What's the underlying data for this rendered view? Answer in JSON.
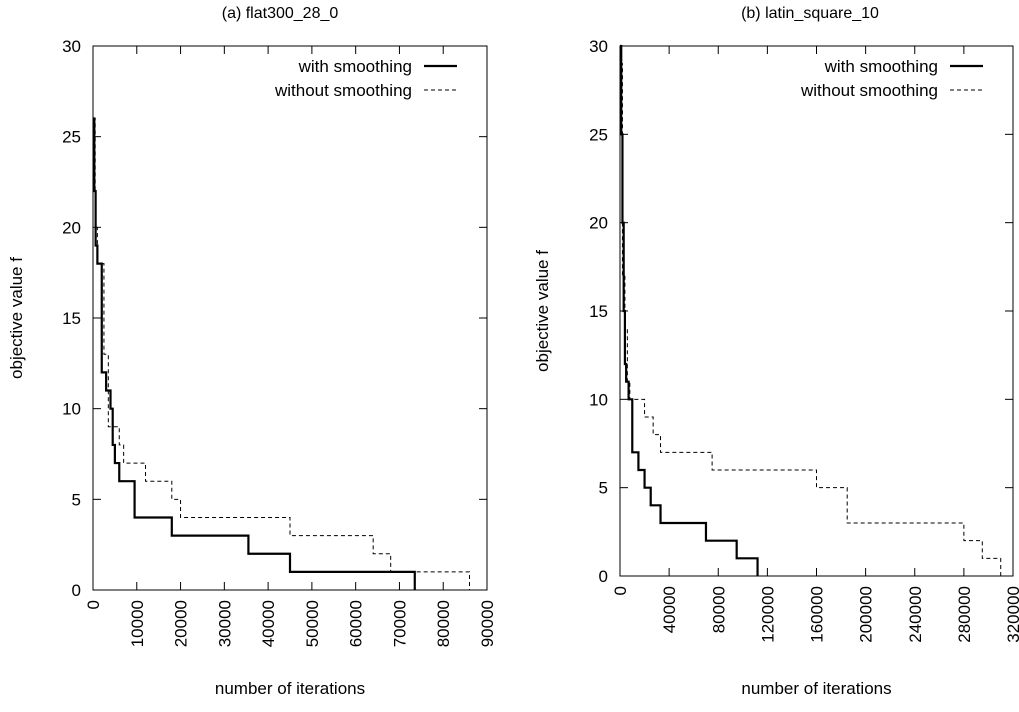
{
  "chart_data": [
    {
      "type": "line",
      "title": "(a) flat300_28_0",
      "xlabel": "number of iterations",
      "ylabel": "objective value f",
      "xlim": [
        0,
        90000
      ],
      "ylim": [
        0,
        30
      ],
      "xticks": [
        0,
        10000,
        20000,
        30000,
        40000,
        50000,
        60000,
        70000,
        80000,
        90000
      ],
      "yticks": [
        0,
        5,
        10,
        15,
        20,
        25,
        30
      ],
      "legend_position": "top-right",
      "grid": false,
      "series": [
        {
          "name": "with smoothing",
          "style": "solid",
          "step": true,
          "x": [
            0,
            300,
            600,
            1000,
            2000,
            3000,
            4000,
            4500,
            5000,
            6000,
            9000,
            9500,
            18000,
            32000,
            35500,
            45000,
            73500
          ],
          "y": [
            26,
            22,
            19,
            18,
            12,
            11,
            10,
            8,
            7,
            6,
            6,
            4,
            3,
            3,
            2,
            1,
            0
          ]
        },
        {
          "name": "without smoothing",
          "style": "dashed",
          "step": true,
          "x": [
            0,
            500,
            1000,
            2500,
            3500,
            5000,
            6000,
            7000,
            10000,
            12000,
            16000,
            18000,
            20000,
            35000,
            45000,
            64000,
            68000,
            70000,
            86000
          ],
          "y": [
            26,
            20,
            18,
            13,
            9,
            9,
            8,
            7,
            7,
            6,
            6,
            5,
            4,
            4,
            3,
            2,
            1,
            1,
            0
          ]
        }
      ]
    },
    {
      "type": "line",
      "title": "(b) latin_square_10",
      "xlabel": "number of iterations",
      "ylabel": "objective value f",
      "xlim": [
        0,
        320000
      ],
      "ylim": [
        0,
        30
      ],
      "xticks": [
        0,
        40000,
        80000,
        120000,
        160000,
        200000,
        240000,
        280000,
        320000
      ],
      "yticks": [
        0,
        5,
        10,
        15,
        20,
        25,
        30
      ],
      "legend_position": "top-right",
      "grid": false,
      "series": [
        {
          "name": "with smoothing",
          "style": "solid",
          "step": true,
          "x": [
            0,
            1000,
            2000,
            3000,
            4000,
            5000,
            7000,
            10000,
            15000,
            20000,
            25000,
            33000,
            50000,
            70000,
            90000,
            95000,
            110000,
            112000
          ],
          "y": [
            30,
            25,
            20,
            15,
            12,
            11,
            10,
            7,
            6,
            5,
            4,
            3,
            3,
            2,
            2,
            1,
            1,
            0
          ]
        },
        {
          "name": "without smoothing",
          "style": "dashed",
          "step": true,
          "x": [
            0,
            2000,
            4000,
            6000,
            8000,
            10000,
            20000,
            27000,
            33000,
            55000,
            75000,
            115000,
            160000,
            180000,
            185000,
            255000,
            280000,
            295000,
            305000,
            310000
          ],
          "y": [
            29,
            17,
            14,
            11,
            10,
            10,
            9,
            8,
            7,
            7,
            6,
            6,
            5,
            5,
            3,
            3,
            2,
            1,
            1,
            0
          ]
        }
      ]
    }
  ]
}
